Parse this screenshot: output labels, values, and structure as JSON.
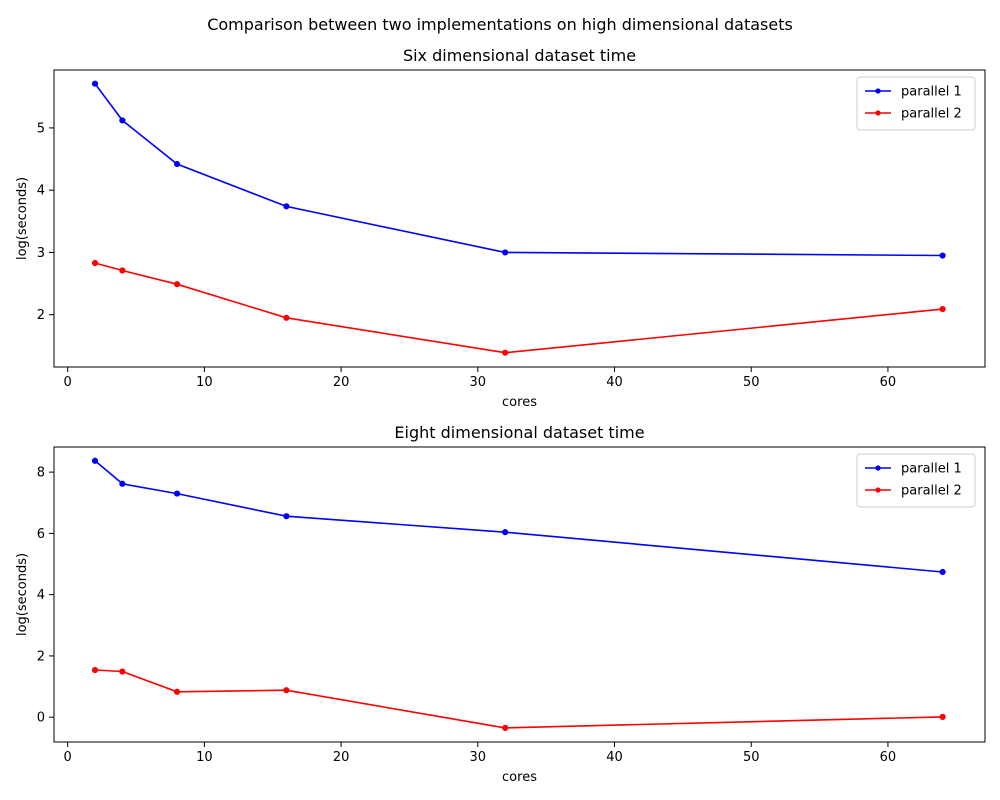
{
  "figure": {
    "suptitle": "Comparison between two implementations on high dimensional datasets"
  },
  "chart_data": [
    {
      "type": "line",
      "title": "Six dimensional dataset time",
      "xlabel": "cores",
      "ylabel": "log(seconds)",
      "xlim": [
        -1,
        67.1
      ],
      "ylim": [
        1.16,
        5.93
      ],
      "xticks": [
        0,
        10,
        20,
        30,
        40,
        50,
        60
      ],
      "yticks": [
        2,
        3,
        4,
        5
      ],
      "grid": false,
      "legend": "top-right",
      "x": [
        2,
        4,
        8,
        16,
        32,
        64
      ],
      "series": [
        {
          "name": "parallel 1",
          "color": "#0000ff",
          "values": [
            5.71,
            5.12,
            4.42,
            3.74,
            3.0,
            2.95
          ]
        },
        {
          "name": "parallel 2",
          "color": "#ff0000",
          "values": [
            2.83,
            2.71,
            2.49,
            1.95,
            1.39,
            2.09
          ]
        }
      ]
    },
    {
      "type": "line",
      "title": "Eight dimensional dataset time",
      "xlabel": "cores",
      "ylabel": "log(seconds)",
      "xlim": [
        -1,
        67.1
      ],
      "ylim": [
        -0.81,
        8.82
      ],
      "xticks": [
        0,
        10,
        20,
        30,
        40,
        50,
        60
      ],
      "yticks": [
        0,
        2,
        4,
        6,
        8
      ],
      "grid": false,
      "legend": "top-right",
      "x": [
        2,
        4,
        8,
        16,
        32,
        64
      ],
      "series": [
        {
          "name": "parallel 1",
          "color": "#0000ff",
          "values": [
            8.37,
            7.62,
            7.3,
            6.56,
            6.04,
            4.74
          ]
        },
        {
          "name": "parallel 2",
          "color": "#ff0000",
          "values": [
            1.54,
            1.49,
            0.83,
            0.88,
            -0.35,
            0.01
          ]
        }
      ]
    }
  ]
}
